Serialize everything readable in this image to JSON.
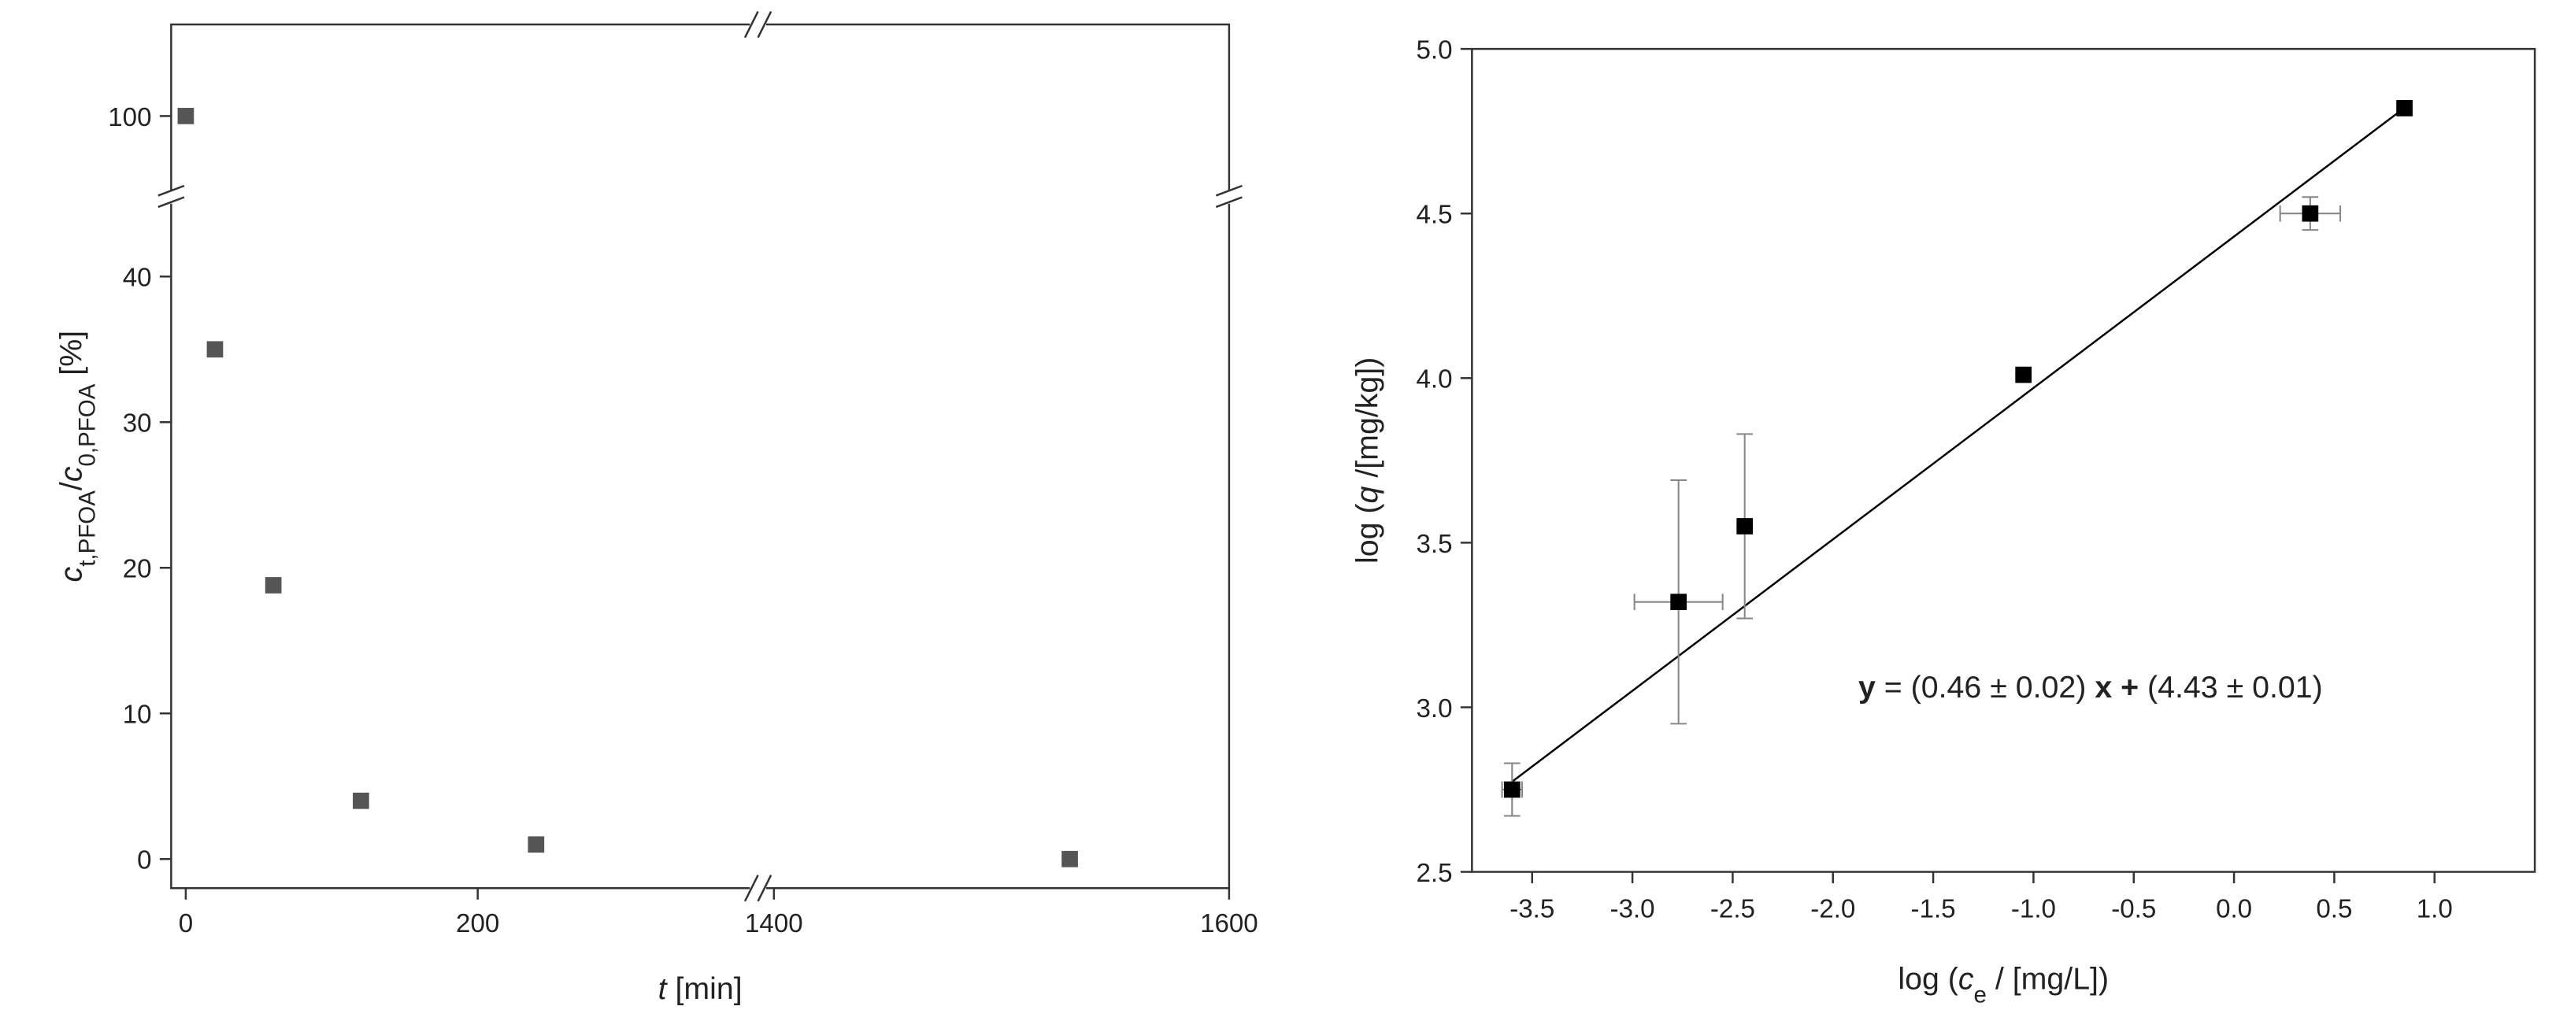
{
  "chart_data": [
    {
      "type": "scatter",
      "xlabel_parts": [
        {
          "text": "t",
          "style": "italic"
        },
        {
          "text": " [min]"
        }
      ],
      "ylabel_parts": [
        {
          "text": "c",
          "style": "italic"
        },
        {
          "text": "t,PFOA",
          "style": "sub"
        },
        {
          "text": "/"
        },
        {
          "text": "c",
          "style": "italic"
        },
        {
          "text": "0,PFOA",
          "style": "sub"
        },
        {
          "text": " [%]"
        }
      ],
      "x": [
        0,
        20,
        60,
        120,
        240,
        1530
      ],
      "values": [
        100,
        35,
        18.8,
        4,
        1,
        0
      ],
      "color": "#555555",
      "x_segments": [
        {
          "xlim": [
            -10,
            392
          ],
          "xticks": [
            0,
            200
          ]
        },
        {
          "xlim": [
            1393,
            1600
          ],
          "xticks": [
            1400,
            1600
          ]
        }
      ],
      "y_segments": [
        {
          "ylim": [
            -2,
            45
          ],
          "yticks": [
            0,
            10,
            20,
            30,
            40
          ]
        },
        {
          "ylim": [
            95,
            106
          ],
          "yticks": [
            100
          ]
        }
      ]
    },
    {
      "type": "scatter",
      "xlabel_parts": [
        {
          "text": "log ("
        },
        {
          "text": "c",
          "style": "italic"
        },
        {
          "text": "e",
          "style": "sub"
        },
        {
          "text": " / [mg/L])"
        }
      ],
      "ylabel_parts": [
        {
          "text": "log ("
        },
        {
          "text": "q",
          "style": "italic"
        },
        {
          "text": " /[mg/kg])"
        }
      ],
      "x": [
        -3.6,
        -2.77,
        -2.44,
        -1.05,
        0.38,
        0.85
      ],
      "values": [
        2.75,
        3.32,
        3.55,
        4.01,
        4.5,
        4.82
      ],
      "xerr": [
        0.05,
        0.22,
        0,
        0,
        0.15,
        0
      ],
      "yerr": [
        0.08,
        0.37,
        0.28,
        0,
        0.05,
        0
      ],
      "color": "#000000",
      "xlim": [
        -3.8,
        1.5
      ],
      "xticks": [
        -3.5,
        {
          "value": -3,
          "label": "-3.0"
        },
        -2.5,
        {
          "value": -2,
          "label": "-2.0"
        },
        -1.5,
        {
          "value": -1,
          "label": "-1.0"
        },
        -0.5,
        {
          "value": 0,
          "label": "0.0"
        },
        0.5,
        {
          "value": 1,
          "label": "1.0"
        }
      ],
      "ylim": [
        2.5,
        5.0
      ],
      "yticks": [
        2.5,
        {
          "value": 3,
          "label": "3.0"
        },
        3.5,
        {
          "value": 4,
          "label": "4.0"
        },
        4.5,
        {
          "value": 5,
          "label": "5.0"
        }
      ],
      "fit": {
        "slope": 0.46,
        "intercept": 4.43,
        "x_range": [
          -3.6,
          0.85
        ]
      },
      "annotation_parts": [
        {
          "text": "y",
          "style": "bold"
        },
        {
          "text": " = (0.46 ± 0.02) "
        },
        {
          "text": "x",
          "style": "bold"
        },
        {
          "text": " + ",
          "style": "bold"
        },
        {
          "text": "(4.43 ± 0.01)"
        }
      ]
    }
  ]
}
